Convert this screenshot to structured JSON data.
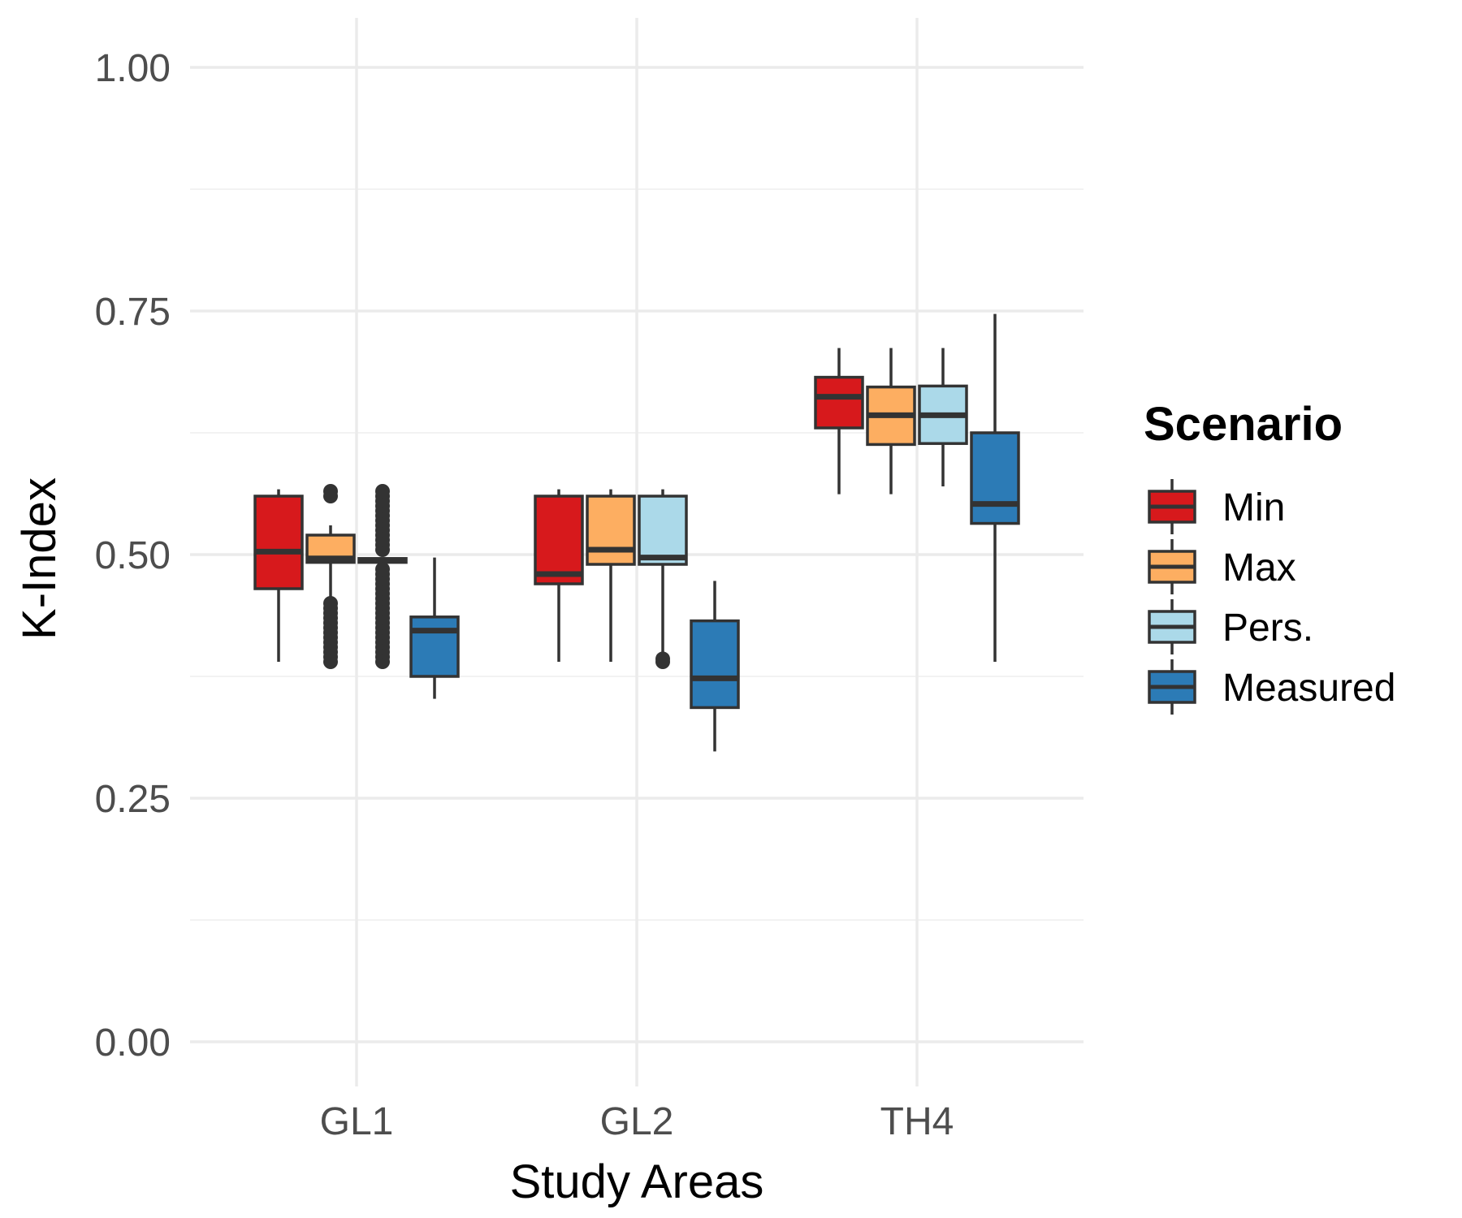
{
  "chart_data": {
    "type": "boxplot",
    "xlabel": "Study Areas",
    "ylabel": "K-Index",
    "ylim": [
      -0.05,
      1.05
    ],
    "yticks": [
      "0.00",
      "0.25",
      "0.50",
      "0.75",
      "1.00"
    ],
    "ytick_values": [
      0,
      0.25,
      0.5,
      0.75,
      1.0
    ],
    "grid": true,
    "legend": {
      "title": "Scenario",
      "position": "right",
      "entries": [
        "Min",
        "Max",
        "Pers.",
        "Measured"
      ]
    },
    "categories": [
      "GL1",
      "GL2",
      "TH4"
    ],
    "series": [
      {
        "name": "Min",
        "color": "#d7191c",
        "boxes": [
          {
            "category": "GL1",
            "whisker_low": 0.39,
            "q1": 0.465,
            "median": 0.503,
            "q3": 0.56,
            "whisker_high": 0.567,
            "outliers": []
          },
          {
            "category": "GL2",
            "whisker_low": 0.39,
            "q1": 0.47,
            "median": 0.48,
            "q3": 0.56,
            "whisker_high": 0.567,
            "outliers": []
          },
          {
            "category": "TH4",
            "whisker_low": 0.562,
            "q1": 0.63,
            "median": 0.662,
            "q3": 0.682,
            "whisker_high": 0.712,
            "outliers": []
          }
        ]
      },
      {
        "name": "Max",
        "color": "#fdae61",
        "boxes": [
          {
            "category": "GL1",
            "whisker_low": 0.455,
            "q1": 0.492,
            "median": 0.496,
            "q3": 0.52,
            "whisker_high": 0.53,
            "outliers": [
              0.39,
              0.395,
              0.4,
              0.405,
              0.41,
              0.415,
              0.42,
              0.425,
              0.43,
              0.435,
              0.44,
              0.445,
              0.45,
              0.56,
              0.565
            ]
          },
          {
            "category": "GL2",
            "whisker_low": 0.39,
            "q1": 0.49,
            "median": 0.505,
            "q3": 0.56,
            "whisker_high": 0.567,
            "outliers": []
          },
          {
            "category": "TH4",
            "whisker_low": 0.562,
            "q1": 0.613,
            "median": 0.643,
            "q3": 0.672,
            "whisker_high": 0.712,
            "outliers": []
          }
        ]
      },
      {
        "name": "Pers.",
        "color": "#abd9e9",
        "boxes": [
          {
            "category": "GL1",
            "whisker_low": 0.492,
            "q1": 0.492,
            "median": 0.494,
            "q3": 0.496,
            "whisker_high": 0.496,
            "outliers": [
              0.39,
              0.395,
              0.4,
              0.405,
              0.41,
              0.415,
              0.42,
              0.425,
              0.43,
              0.435,
              0.44,
              0.445,
              0.45,
              0.455,
              0.46,
              0.465,
              0.47,
              0.475,
              0.48,
              0.485,
              0.505,
              0.51,
              0.515,
              0.52,
              0.525,
              0.53,
              0.535,
              0.54,
              0.545,
              0.55,
              0.555,
              0.56,
              0.565
            ]
          },
          {
            "category": "GL2",
            "whisker_low": 0.4,
            "q1": 0.49,
            "median": 0.497,
            "q3": 0.56,
            "whisker_high": 0.567,
            "outliers": [
              0.39,
              0.393
            ]
          },
          {
            "category": "TH4",
            "whisker_low": 0.57,
            "q1": 0.614,
            "median": 0.643,
            "q3": 0.673,
            "whisker_high": 0.712,
            "outliers": []
          }
        ]
      },
      {
        "name": "Measured",
        "color": "#2c7bb6",
        "boxes": [
          {
            "category": "GL1",
            "whisker_low": 0.352,
            "q1": 0.375,
            "median": 0.422,
            "q3": 0.436,
            "whisker_high": 0.497,
            "outliers": []
          },
          {
            "category": "GL2",
            "whisker_low": 0.298,
            "q1": 0.343,
            "median": 0.373,
            "q3": 0.432,
            "whisker_high": 0.473,
            "outliers": []
          },
          {
            "category": "TH4",
            "whisker_low": 0.39,
            "q1": 0.532,
            "median": 0.552,
            "q3": 0.625,
            "whisker_high": 0.747,
            "outliers": []
          }
        ]
      }
    ]
  }
}
